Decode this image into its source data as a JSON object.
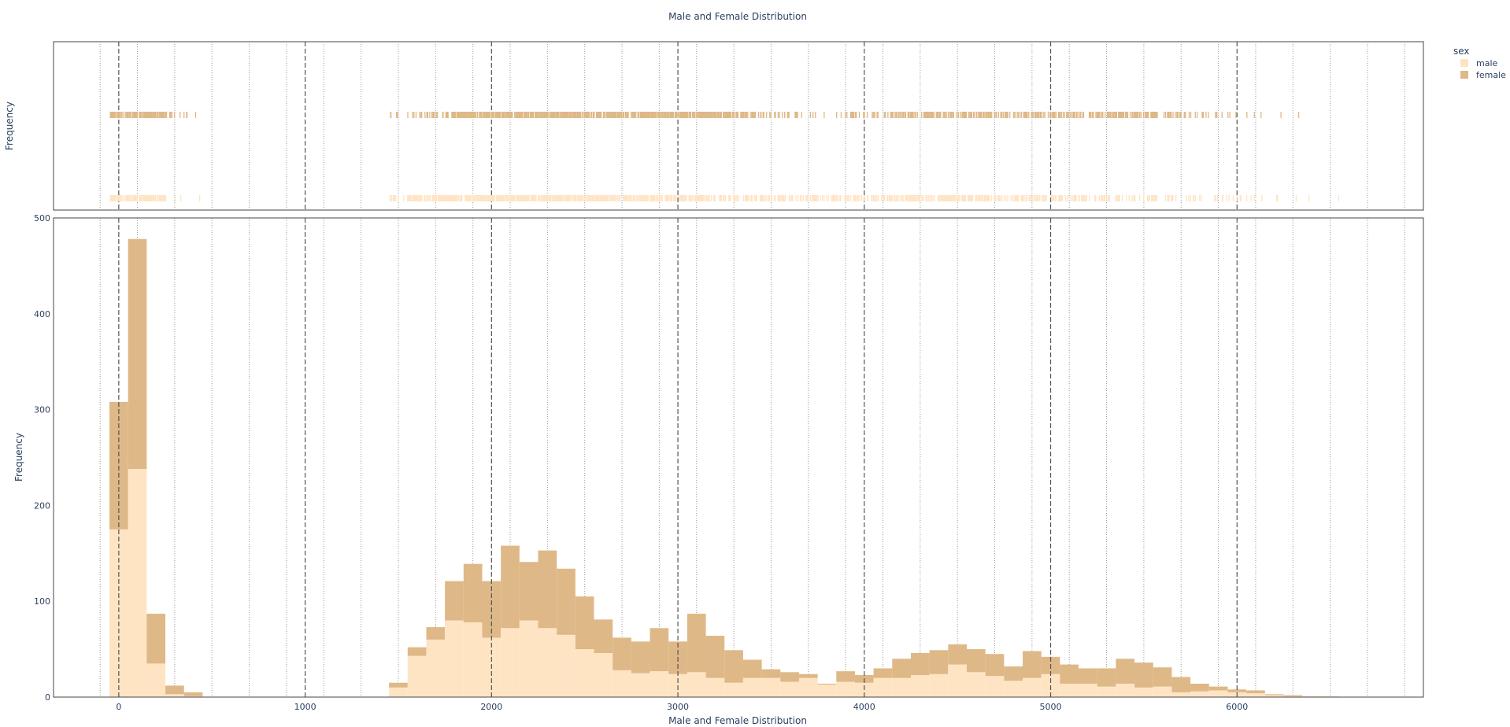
{
  "chart_data": {
    "type": "bar",
    "barmode": "stack",
    "title": "Male and Female Distribution",
    "xlabel": "Male and Female Distribution",
    "ylabel": "Frequency",
    "rug_ylabel": "Frequency",
    "xlim": [
      -350,
      7000
    ],
    "ylim": [
      0,
      500
    ],
    "x_ticks": [
      0,
      1000,
      2000,
      3000,
      4000,
      5000,
      6000
    ],
    "y_ticks": [
      0,
      100,
      200,
      300,
      400,
      500
    ],
    "bin_width": 100,
    "legend": {
      "title": "sex",
      "placement": "right"
    },
    "series": [
      {
        "name": "male",
        "color": "#ffe4c4",
        "bin_starts": [
          -50,
          50,
          150,
          250,
          350,
          1450,
          1550,
          1650,
          1750,
          1850,
          1950,
          2050,
          2150,
          2250,
          2350,
          2450,
          2550,
          2650,
          2750,
          2850,
          2950,
          3050,
          3150,
          3250,
          3350,
          3450,
          3550,
          3650,
          3750,
          3850,
          3950,
          4050,
          4150,
          4250,
          4350,
          4450,
          4550,
          4650,
          4750,
          4850,
          4950,
          5050,
          5150,
          5250,
          5350,
          5450,
          5550,
          5650,
          5750,
          5850,
          5950,
          6050,
          6150,
          6250,
          6350,
          6450
        ],
        "values": [
          175,
          238,
          35,
          3,
          1,
          10,
          43,
          60,
          80,
          78,
          62,
          72,
          80,
          72,
          65,
          50,
          46,
          28,
          25,
          27,
          24,
          26,
          20,
          15,
          20,
          20,
          16,
          20,
          13,
          16,
          15,
          20,
          20,
          23,
          24,
          34,
          26,
          22,
          17,
          20,
          24,
          14,
          14,
          11,
          14,
          10,
          11,
          5,
          6,
          7,
          5,
          4,
          2,
          1,
          1,
          1
        ]
      },
      {
        "name": "female",
        "color": "#deb887",
        "bin_starts": [
          -50,
          50,
          150,
          250,
          350,
          1450,
          1550,
          1650,
          1750,
          1850,
          1950,
          2050,
          2150,
          2250,
          2350,
          2450,
          2550,
          2650,
          2750,
          2850,
          2950,
          3050,
          3150,
          3250,
          3350,
          3450,
          3550,
          3650,
          3750,
          3850,
          3950,
          4050,
          4150,
          4250,
          4350,
          4450,
          4550,
          4650,
          4750,
          4850,
          4950,
          5050,
          5150,
          5250,
          5350,
          5450,
          5550,
          5650,
          5750,
          5850,
          5950,
          6050,
          6150,
          6250,
          6350,
          6450
        ],
        "values": [
          133,
          240,
          52,
          9,
          4,
          5,
          9,
          13,
          41,
          61,
          59,
          86,
          61,
          81,
          69,
          55,
          35,
          34,
          33,
          45,
          34,
          61,
          44,
          34,
          19,
          9,
          10,
          4,
          1,
          11,
          8,
          10,
          20,
          23,
          25,
          21,
          24,
          23,
          15,
          28,
          18,
          20,
          16,
          19,
          26,
          26,
          20,
          16,
          8,
          4,
          3,
          3,
          1,
          1,
          0,
          0
        ]
      }
    ]
  }
}
